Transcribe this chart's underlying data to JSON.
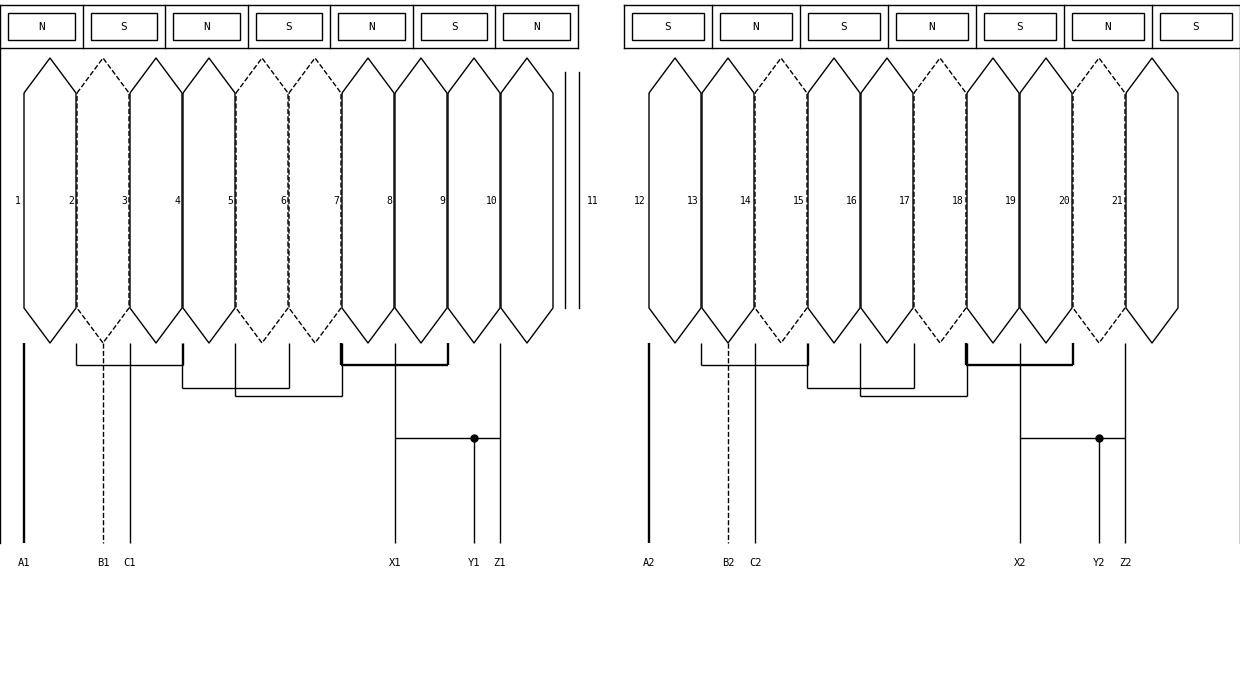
{
  "fig_width": 12.4,
  "fig_height": 6.73,
  "bg_color": "#ffffff",
  "lw": 1.0,
  "lw_thick": 1.8,
  "magnet_labels_left": [
    "N",
    "S",
    "N",
    "S",
    "N",
    "S",
    "N"
  ],
  "magnet_labels_right": [
    "S",
    "N",
    "S",
    "N",
    "S",
    "N",
    "S"
  ],
  "slot_labels_left": [
    "1",
    "2",
    "3",
    "4",
    "5",
    "6",
    "7",
    "8",
    "9",
    "10"
  ],
  "slot_labels_right": [
    "12",
    "13",
    "14",
    "15",
    "16",
    "17",
    "18",
    "19",
    "20",
    "21"
  ],
  "slot_label_11": "11",
  "term_labels_left": [
    "A1",
    "B1",
    "C1",
    "X1",
    "Y1",
    "Z1"
  ],
  "term_labels_right": [
    "A2",
    "B2",
    "C2",
    "X2",
    "Y2",
    "Z2"
  ]
}
